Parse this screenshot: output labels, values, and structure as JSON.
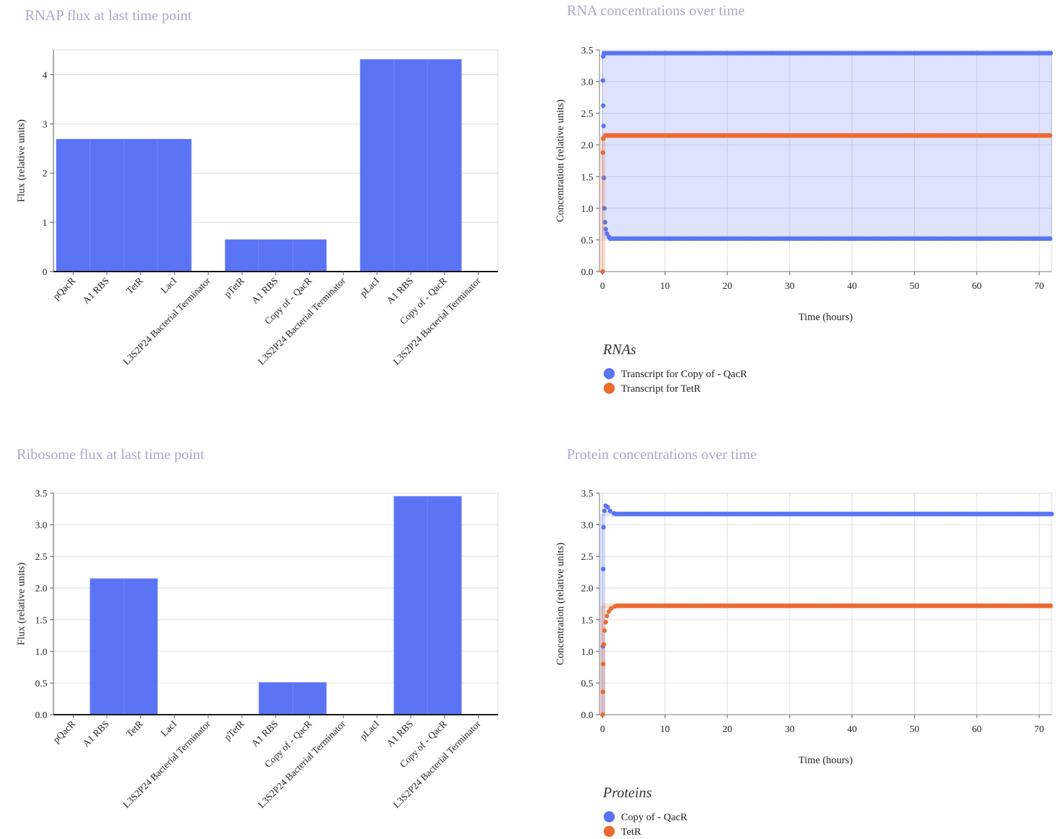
{
  "colors": {
    "blue": "#5a74f5",
    "orange": "#ea6a2f",
    "title": "#a8aac8"
  },
  "chart_data": [
    {
      "type": "bar",
      "title": "RNAP flux at last time point",
      "ylabel": "Flux (relative units)",
      "ylim": [
        0,
        4.5
      ],
      "yticks": [
        "0",
        "1",
        "2",
        "3",
        "4"
      ],
      "categories": [
        "pQacR",
        "A1 RBS",
        "TetR",
        "LacI",
        "L3S2P24 Bacterial Terminator",
        "pTetR",
        "A1 RBS",
        "Copy of - QacR",
        "L3S2P24 Bacterial Terminator",
        "pLacI",
        "A1 RBS",
        "Copy of - QacR",
        "L3S2P24 Bacterial Terminator"
      ],
      "values": [
        2.69,
        2.69,
        2.69,
        2.69,
        0,
        0.65,
        0.65,
        0.65,
        0,
        4.31,
        4.31,
        4.31,
        0
      ]
    },
    {
      "type": "scatter",
      "title": "RNA concentrations over time",
      "xlabel": "Time (hours)",
      "ylabel": "Concentration (relative units)",
      "xlim": [
        -0.5,
        72
      ],
      "ylim": [
        0,
        3.5
      ],
      "xticks": [
        "0",
        "10",
        "20",
        "30",
        "40",
        "50",
        "60",
        "70"
      ],
      "yticks": [
        "0.0",
        "0.5",
        "1.0",
        "1.5",
        "2.0",
        "2.5",
        "3.0",
        "3.5"
      ],
      "legend_title": "RNAs",
      "series": [
        {
          "name": "Transcript for Copy of - QacR",
          "color": "#5a74f5",
          "upper": 3.45,
          "lower": 0.52,
          "early_upper": [
            [
              0,
              0
            ],
            [
              0.05,
              3.02
            ],
            [
              0.1,
              3.4
            ]
          ],
          "early_lower": [
            [
              0.1,
              2.62
            ],
            [
              0.15,
              2.3
            ],
            [
              0.2,
              1.48
            ],
            [
              0.3,
              1.0
            ],
            [
              0.4,
              0.78
            ],
            [
              0.5,
              0.67
            ],
            [
              0.7,
              0.6
            ],
            [
              1.0,
              0.55
            ]
          ]
        },
        {
          "name": "Transcript for TetR",
          "color": "#ea6a2f",
          "level": 2.15,
          "early": [
            [
              0,
              0
            ],
            [
              0.05,
              1.88
            ],
            [
              0.1,
              2.1
            ]
          ]
        }
      ]
    },
    {
      "type": "bar",
      "title": "Ribosome flux at last time point",
      "ylabel": "Flux (relative units)",
      "ylim": [
        0,
        3.5
      ],
      "yticks": [
        "0.0",
        "0.5",
        "1.0",
        "1.5",
        "2.0",
        "2.5",
        "3.0",
        "3.5"
      ],
      "categories": [
        "pQacR",
        "A1 RBS",
        "TetR",
        "LacI",
        "L3S2P24 Bacterial Terminator",
        "pTetR",
        "A1 RBS",
        "Copy of - QacR",
        "L3S2P24 Bacterial Terminator",
        "pLacI",
        "A1 RBS",
        "Copy of - QacR",
        "L3S2P24 Bacterial Terminator"
      ],
      "values": [
        0,
        2.15,
        2.15,
        0,
        0,
        0,
        0.51,
        0.51,
        0,
        0,
        3.45,
        3.45,
        0
      ]
    },
    {
      "type": "scatter",
      "title": "Protein concentrations over time",
      "xlabel": "Time (hours)",
      "ylabel": "Concentration (relative units)",
      "xlim": [
        -0.5,
        72
      ],
      "ylim": [
        0,
        3.5
      ],
      "xticks": [
        "0",
        "10",
        "20",
        "30",
        "40",
        "50",
        "60",
        "70"
      ],
      "yticks": [
        "0.0",
        "0.5",
        "1.0",
        "1.5",
        "2.0",
        "2.5",
        "3.0",
        "3.5"
      ],
      "legend_title": "Proteins",
      "series": [
        {
          "name": "Copy of - QacR",
          "color": "#5a74f5",
          "level": 3.17,
          "early": [
            [
              0,
              0
            ],
            [
              0.05,
              1.08
            ],
            [
              0.1,
              2.3
            ],
            [
              0.15,
              2.96
            ],
            [
              0.3,
              3.22
            ],
            [
              0.5,
              3.3
            ],
            [
              0.8,
              3.28
            ],
            [
              1.2,
              3.22
            ],
            [
              1.8,
              3.18
            ]
          ]
        },
        {
          "name": "TetR",
          "color": "#ea6a2f",
          "level": 1.72,
          "early": [
            [
              0,
              0
            ],
            [
              0.05,
              0.36
            ],
            [
              0.1,
              0.8
            ],
            [
              0.2,
              1.11
            ],
            [
              0.3,
              1.33
            ],
            [
              0.5,
              1.46
            ],
            [
              0.7,
              1.56
            ],
            [
              1.0,
              1.63
            ],
            [
              1.4,
              1.68
            ],
            [
              2.0,
              1.71
            ]
          ]
        }
      ]
    }
  ]
}
